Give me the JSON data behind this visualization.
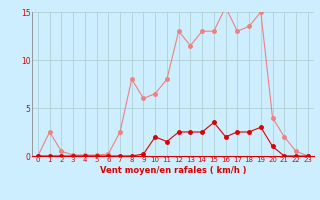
{
  "x": [
    0,
    1,
    2,
    3,
    4,
    5,
    6,
    7,
    8,
    9,
    10,
    11,
    12,
    13,
    14,
    15,
    16,
    17,
    18,
    19,
    20,
    21,
    22,
    23
  ],
  "y_rafales": [
    0.0,
    2.5,
    0.5,
    0.1,
    0.1,
    0.1,
    0.2,
    2.5,
    8.0,
    6.0,
    6.5,
    8.0,
    13.0,
    11.5,
    13.0,
    13.0,
    15.5,
    13.0,
    13.5,
    15.0,
    4.0,
    2.0,
    0.5,
    0.0
  ],
  "y_moyen": [
    0.0,
    0.0,
    0.0,
    0.0,
    0.0,
    0.0,
    0.0,
    0.0,
    0.0,
    0.2,
    2.0,
    1.5,
    2.5,
    2.5,
    2.5,
    3.5,
    2.0,
    2.5,
    2.5,
    3.0,
    1.0,
    0.0,
    0.0,
    0.0
  ],
  "color_rafales": "#f08080",
  "color_moyen": "#dd0000",
  "bg_color": "#cceeff",
  "grid_color": "#aacccc",
  "xlabel": "Vent moyen/en rafales ( km/h )",
  "ylim": [
    0,
    15
  ],
  "xlim_min": -0.5,
  "xlim_max": 23.5,
  "yticks": [
    0,
    5,
    10,
    15
  ],
  "xticks": [
    0,
    1,
    2,
    3,
    4,
    5,
    6,
    7,
    8,
    9,
    10,
    11,
    12,
    13,
    14,
    15,
    16,
    17,
    18,
    19,
    20,
    21,
    22,
    23
  ],
  "marker_size": 2.5,
  "line_width": 0.8,
  "tick_fontsize": 5.0,
  "xlabel_fontsize": 6.0
}
